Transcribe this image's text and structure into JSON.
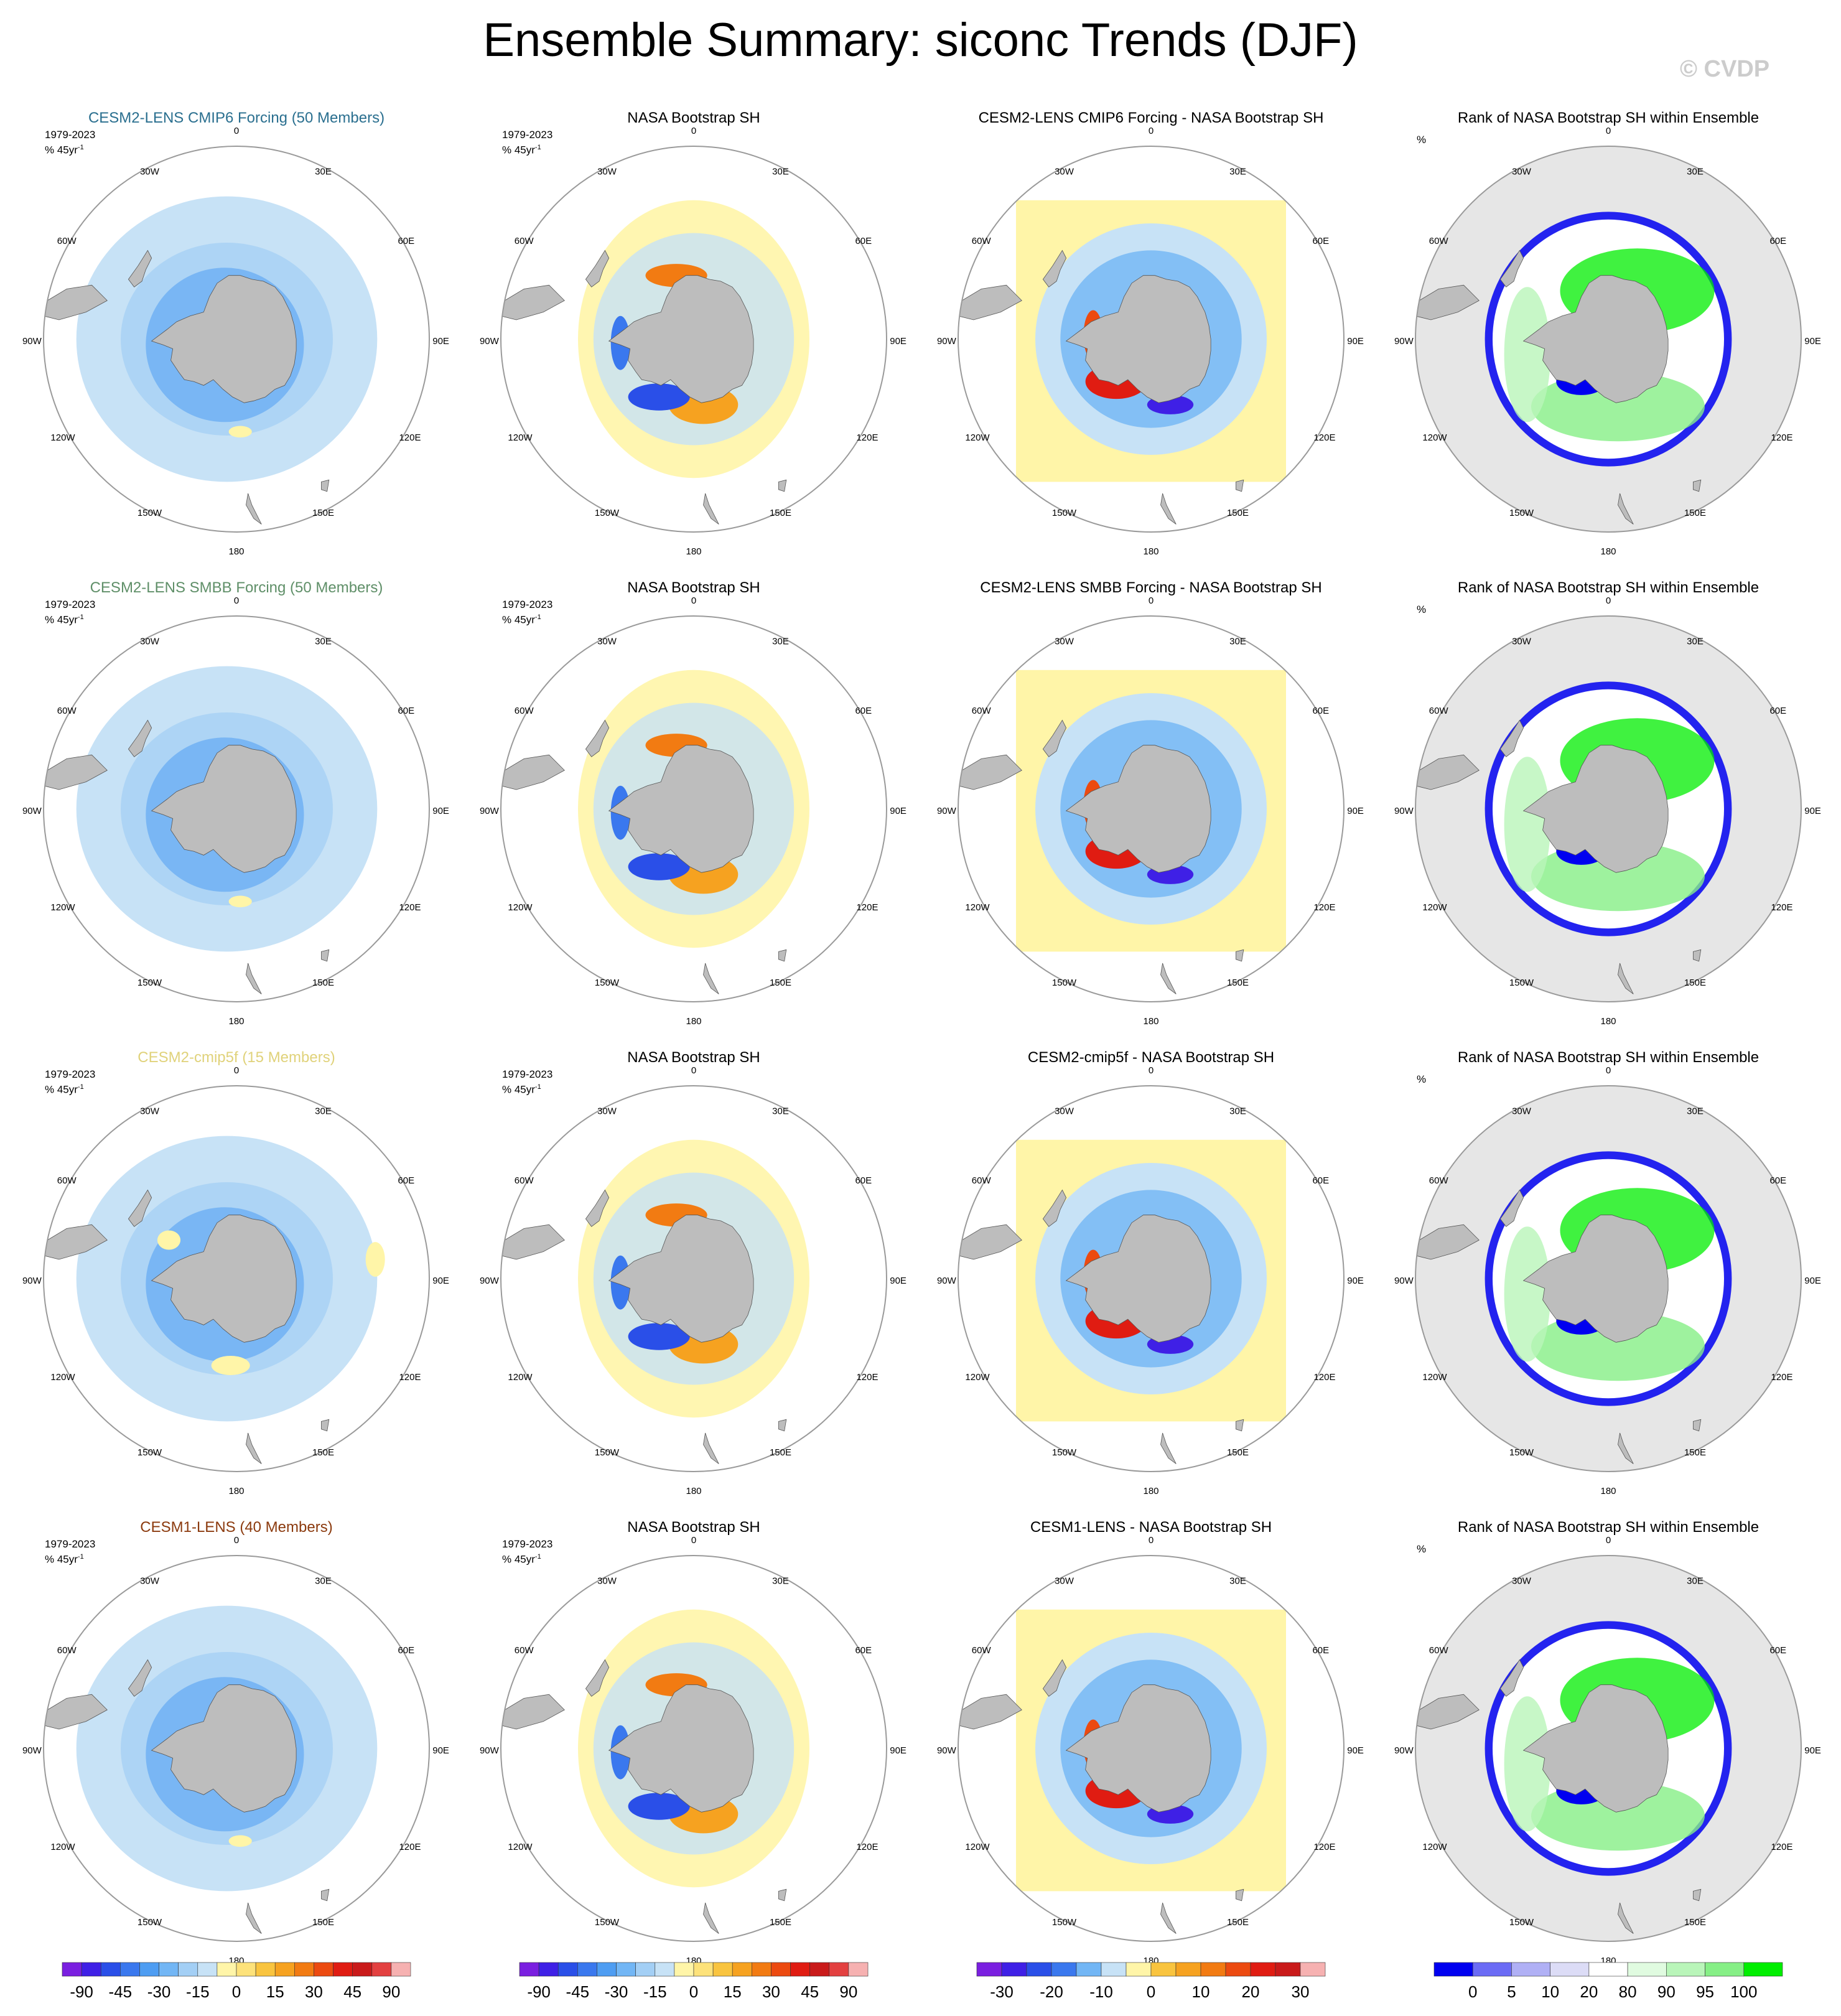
{
  "title": "Ensemble Summary: siconc Trends (DJF)",
  "watermark": "© CVDP",
  "lon_labels": {
    "top": "0",
    "bottom": "180",
    "l1": "30W",
    "r1": "30E",
    "l2": "60W",
    "r2": "60E",
    "l3": "90W",
    "r3": "90E",
    "l4": "120W",
    "r4": "120E",
    "l5": "150W",
    "r5": "150E"
  },
  "period": "1979-2023",
  "units": "% 45yr",
  "units_sup": "-1",
  "rank_unit": "%",
  "colors": {
    "land": "#bdbdbd",
    "ocean_mask": "#e6e6e6",
    "grid_circle": "#9a9a9a"
  },
  "rows": [
    {
      "model_title": "CESM2-LENS CMIP6 Forcing (50 Members)",
      "model_color": "#2a6f8f",
      "obs_title": "NASA Bootstrap SH",
      "diff_title": "CESM2-LENS CMIP6 Forcing - NASA Bootstrap SH",
      "rank_title": "Rank of NASA Bootstrap SH within Ensemble"
    },
    {
      "model_title": "CESM2-LENS SMBB Forcing (50 Members)",
      "model_color": "#5f8f68",
      "obs_title": "NASA Bootstrap SH",
      "diff_title": "CESM2-LENS SMBB Forcing - NASA Bootstrap SH",
      "rank_title": "Rank of NASA Bootstrap SH within Ensemble"
    },
    {
      "model_title": "CESM2-cmip5f (15 Members)",
      "model_color": "#e0d27a",
      "obs_title": "NASA Bootstrap SH",
      "diff_title": "CESM2-cmip5f - NASA Bootstrap SH",
      "rank_title": "Rank of NASA Bootstrap SH within Ensemble"
    },
    {
      "model_title": "CESM1-LENS (40 Members)",
      "model_color": "#8b3a0e",
      "obs_title": "NASA Bootstrap SH",
      "diff_title": "CESM1-LENS - NASA Bootstrap SH",
      "rank_title": "Rank of NASA Bootstrap SH within Ensemble"
    }
  ],
  "chart_data": [
    {
      "type": "heatmap",
      "name": "trend colorbar",
      "tick_labels": [
        "-90",
        "-45",
        "-30",
        "-15",
        "0",
        "15",
        "30",
        "45",
        "90"
      ],
      "colors": [
        "#7a1fe0",
        "#3f20e6",
        "#2a4fe8",
        "#3a78ee",
        "#4e9df2",
        "#72b6f5",
        "#a3cff5",
        "#c7e2f6",
        "#fff5a8",
        "#fde27a",
        "#f9c43f",
        "#f6a220",
        "#f27b12",
        "#ec4a10",
        "#e01c12",
        "#c91a1a",
        "#e34040",
        "#f6b1b1"
      ]
    },
    {
      "type": "heatmap",
      "name": "difference colorbar",
      "tick_labels": [
        "-30",
        "-20",
        "-10",
        "0",
        "10",
        "20",
        "30"
      ],
      "colors": [
        "#7a1fe0",
        "#3f20e6",
        "#2a4fe8",
        "#3a78ee",
        "#72b6f5",
        "#c7e2f6",
        "#fff5a8",
        "#f9c43f",
        "#f6a220",
        "#f27b12",
        "#ec4a10",
        "#e01c12",
        "#c91a1a",
        "#f6b1b1"
      ]
    },
    {
      "type": "heatmap",
      "name": "rank colorbar",
      "tick_labels": [
        "0",
        "5",
        "10",
        "20",
        "80",
        "90",
        "95",
        "100"
      ],
      "colors": [
        "#0000f0",
        "#6b6bf5",
        "#b0b0f5",
        "#dcdcf6",
        "#ffffff",
        "#e0fbe0",
        "#b9f5b9",
        "#86ef86",
        "#00ee00"
      ]
    }
  ]
}
